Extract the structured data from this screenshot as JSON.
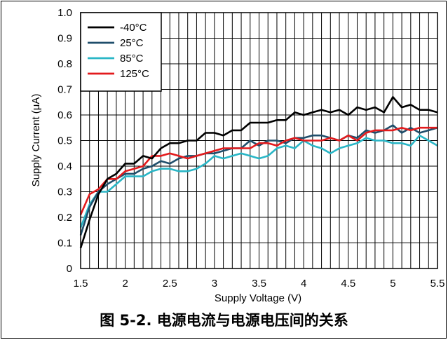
{
  "caption": "图 5-2. 电源电流与电源电压间的关系",
  "chart_data": {
    "type": "line",
    "xlabel": "Supply Voltage (V)",
    "ylabel": "Supply Current (μA)",
    "xlim": [
      1.5,
      5.5
    ],
    "ylim": [
      0,
      1.0
    ],
    "xticks": [
      1.5,
      2,
      2.5,
      3,
      3.5,
      4,
      4.5,
      5,
      5.5
    ],
    "xtick_labels": [
      "1.5",
      "2",
      "2.5",
      "3",
      "3.5",
      "4",
      "4.5",
      "5",
      "5.5"
    ],
    "yticks": [
      0,
      0.1,
      0.2,
      0.3,
      0.4,
      0.5,
      0.6,
      0.7,
      0.8,
      0.9,
      1.0
    ],
    "ytick_labels": [
      "0",
      "0.1",
      "0.2",
      "0.3",
      "0.4",
      "0.5",
      "0.6",
      "0.7",
      "0.8",
      "0.9",
      "1.0"
    ],
    "grid": true,
    "legend_position": "top-left",
    "series": [
      {
        "name": "-40°C",
        "color": "#000000",
        "x": [
          1.5,
          1.6,
          1.7,
          1.8,
          1.9,
          2.0,
          2.1,
          2.2,
          2.3,
          2.4,
          2.5,
          2.6,
          2.7,
          2.8,
          2.9,
          3.0,
          3.1,
          3.2,
          3.3,
          3.4,
          3.5,
          3.6,
          3.7,
          3.8,
          3.9,
          4.0,
          4.1,
          4.2,
          4.3,
          4.4,
          4.5,
          4.6,
          4.7,
          4.8,
          4.9,
          5.0,
          5.1,
          5.2,
          5.3,
          5.4,
          5.5
        ],
        "y": [
          0.08,
          0.19,
          0.29,
          0.35,
          0.37,
          0.41,
          0.41,
          0.44,
          0.43,
          0.47,
          0.49,
          0.49,
          0.5,
          0.5,
          0.53,
          0.53,
          0.52,
          0.54,
          0.54,
          0.57,
          0.57,
          0.57,
          0.58,
          0.58,
          0.61,
          0.6,
          0.61,
          0.62,
          0.61,
          0.62,
          0.6,
          0.63,
          0.62,
          0.63,
          0.61,
          0.67,
          0.63,
          0.64,
          0.62,
          0.62,
          0.61
        ]
      },
      {
        "name": "25°C",
        "color": "#1f4e6b",
        "x": [
          1.5,
          1.6,
          1.7,
          1.8,
          1.9,
          2.0,
          2.1,
          2.2,
          2.3,
          2.4,
          2.5,
          2.6,
          2.7,
          2.8,
          2.9,
          3.0,
          3.1,
          3.2,
          3.3,
          3.4,
          3.5,
          3.6,
          3.7,
          3.8,
          3.9,
          4.0,
          4.1,
          4.2,
          4.3,
          4.4,
          4.5,
          4.6,
          4.7,
          4.8,
          4.9,
          5.0,
          5.1,
          5.2,
          5.3,
          5.4,
          5.5
        ],
        "y": [
          0.13,
          0.24,
          0.3,
          0.33,
          0.35,
          0.37,
          0.37,
          0.39,
          0.4,
          0.42,
          0.41,
          0.43,
          0.44,
          0.44,
          0.45,
          0.45,
          0.46,
          0.47,
          0.47,
          0.5,
          0.48,
          0.5,
          0.5,
          0.49,
          0.51,
          0.51,
          0.52,
          0.52,
          0.51,
          0.5,
          0.52,
          0.51,
          0.54,
          0.53,
          0.54,
          0.56,
          0.53,
          0.55,
          0.53,
          0.54,
          0.55
        ]
      },
      {
        "name": "85°C",
        "color": "#29b6c6",
        "x": [
          1.5,
          1.6,
          1.7,
          1.8,
          1.9,
          2.0,
          2.1,
          2.2,
          2.3,
          2.4,
          2.5,
          2.6,
          2.7,
          2.8,
          2.9,
          3.0,
          3.1,
          3.2,
          3.3,
          3.4,
          3.5,
          3.6,
          3.7,
          3.8,
          3.9,
          4.0,
          4.1,
          4.2,
          4.3,
          4.4,
          4.5,
          4.6,
          4.7,
          4.8,
          4.9,
          5.0,
          5.1,
          5.2,
          5.3,
          5.4,
          5.5
        ],
        "y": [
          0.16,
          0.25,
          0.3,
          0.3,
          0.33,
          0.36,
          0.36,
          0.36,
          0.38,
          0.39,
          0.39,
          0.38,
          0.38,
          0.39,
          0.41,
          0.44,
          0.43,
          0.44,
          0.45,
          0.44,
          0.43,
          0.44,
          0.47,
          0.48,
          0.47,
          0.5,
          0.48,
          0.47,
          0.45,
          0.47,
          0.48,
          0.49,
          0.51,
          0.5,
          0.5,
          0.49,
          0.49,
          0.48,
          0.52,
          0.5,
          0.48
        ]
      },
      {
        "name": "125°C",
        "color": "#e31a1c",
        "x": [
          1.5,
          1.6,
          1.7,
          1.8,
          1.9,
          2.0,
          2.1,
          2.2,
          2.3,
          2.4,
          2.5,
          2.6,
          2.7,
          2.8,
          2.9,
          3.0,
          3.1,
          3.2,
          3.3,
          3.4,
          3.5,
          3.6,
          3.7,
          3.8,
          3.9,
          4.0,
          4.1,
          4.2,
          4.3,
          4.4,
          4.5,
          4.6,
          4.7,
          4.8,
          4.9,
          5.0,
          5.1,
          5.2,
          5.3,
          5.4,
          5.5
        ],
        "y": [
          0.21,
          0.29,
          0.31,
          0.35,
          0.35,
          0.38,
          0.39,
          0.4,
          0.44,
          0.44,
          0.45,
          0.44,
          0.43,
          0.44,
          0.45,
          0.46,
          0.47,
          0.47,
          0.47,
          0.47,
          0.49,
          0.49,
          0.48,
          0.5,
          0.51,
          0.5,
          0.5,
          0.5,
          0.51,
          0.5,
          0.52,
          0.5,
          0.53,
          0.54,
          0.54,
          0.54,
          0.55,
          0.54,
          0.55,
          0.55,
          0.55
        ]
      }
    ]
  }
}
